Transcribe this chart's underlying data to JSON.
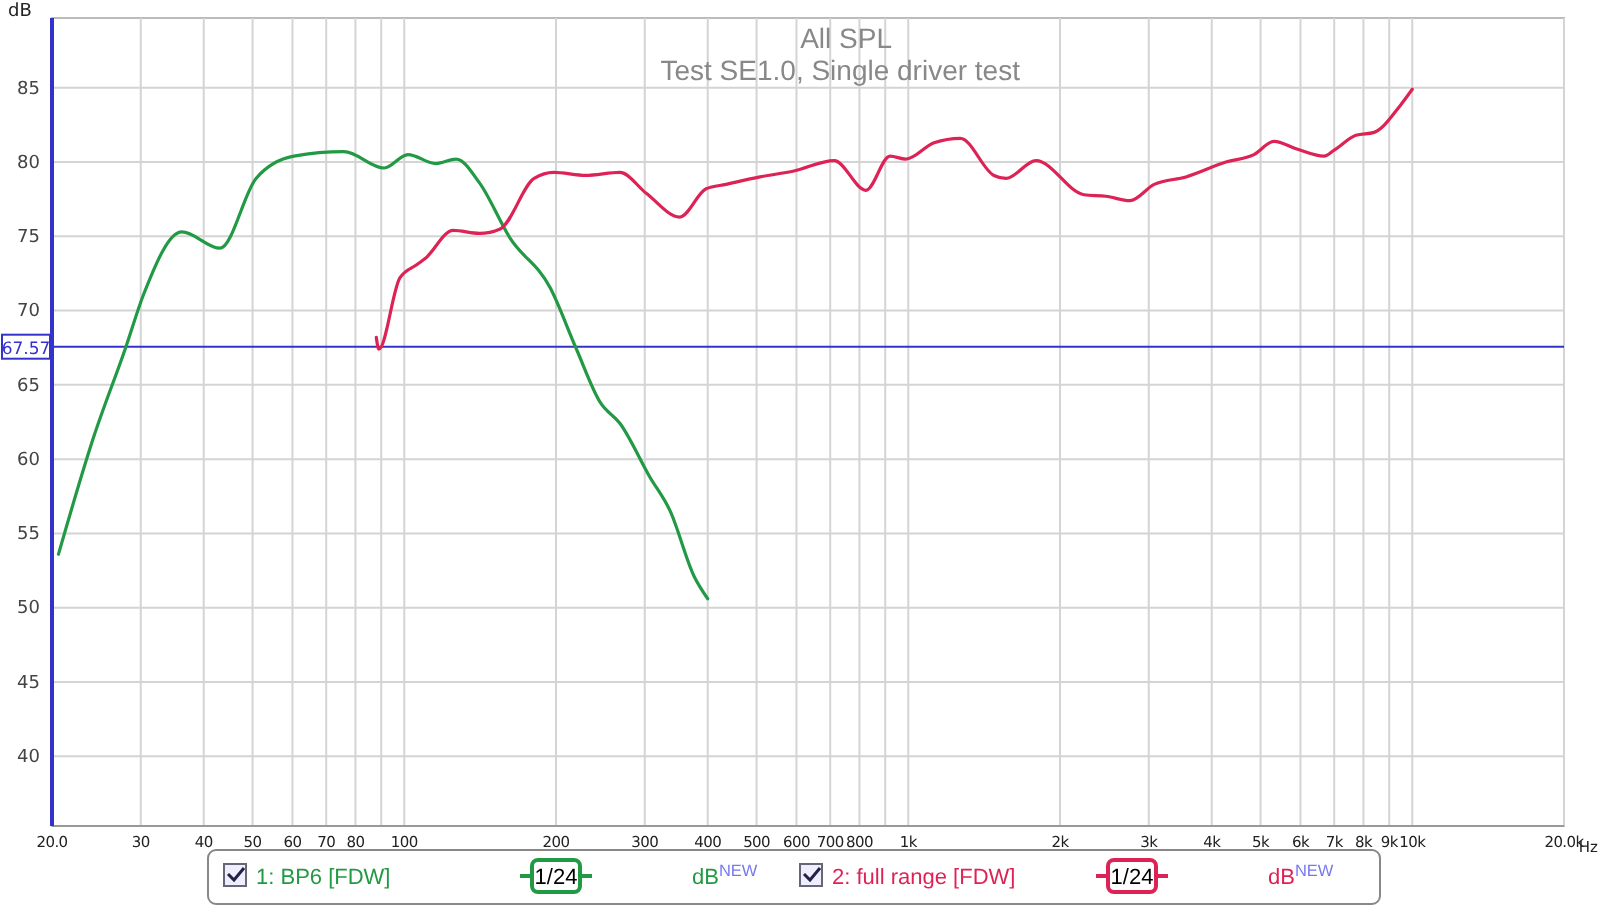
{
  "chart_data": {
    "type": "line",
    "title": "All SPL",
    "subtitle": "Test SE1.0, Single driver test",
    "xlabel": "Hz",
    "ylabel": "dB",
    "log": "x",
    "grid": true,
    "legend": "bottom",
    "xlim": [
      20,
      20000
    ],
    "xticks": [
      {
        "value": 20,
        "label": "20.0"
      },
      30,
      40,
      50,
      60,
      70,
      80,
      100,
      200,
      300,
      400,
      500,
      600,
      700,
      800,
      {
        "value": 1000,
        "label": "1k"
      },
      {
        "value": 2000,
        "label": "2k"
      },
      {
        "value": 3000,
        "label": "3k"
      },
      {
        "value": 4000,
        "label": "4k"
      },
      {
        "value": 5000,
        "label": "5k"
      },
      {
        "value": 6000,
        "label": "6k"
      },
      {
        "value": 7000,
        "label": "7k"
      },
      {
        "value": 8000,
        "label": "8k"
      },
      {
        "value": 9000,
        "label": "9k"
      },
      {
        "value": 10000,
        "label": "10k"
      },
      {
        "value": 20000,
        "label": "20.0k"
      },
      {
        "value": 90,
        "label": null
      },
      {
        "value": 900,
        "label": null
      }
    ],
    "ylim": [
      35.3,
      89.7
    ],
    "yticks": [
      40,
      45,
      50,
      55,
      60,
      65,
      70,
      75,
      80,
      85
    ],
    "ref_lines": [
      {
        "axis": "y",
        "value": 67.57,
        "label": "67.57",
        "color": "#3333cc"
      }
    ],
    "annotations": [
      "1/24",
      "dB$^{NEW}$",
      "1/24",
      "dB$^{NEW}$"
    ],
    "series": [
      {
        "name": "1: BP6 [FDW]",
        "color": "#229944",
        "x": [
          20.6,
          24.2,
          28.0,
          30.4,
          36.2,
          43.1,
          50.8,
          60.4,
          75.9,
          91.2,
          101.7,
          115.6,
          126.7,
          141,
          162,
          195,
          219,
          245,
          268,
          307,
          337,
          376,
          400
        ],
        "values": [
          53.6,
          61.5,
          67.5,
          71.1,
          75.3,
          74.2,
          78.9,
          80.4,
          80.7,
          79.6,
          80.5,
          79.9,
          80.2,
          78.6,
          74.9,
          71.5,
          67.5,
          63.8,
          62.4,
          58.8,
          56.5,
          52.1,
          50.6
        ]
      },
      {
        "name": "2: full range [FDW]",
        "color": "#dd2255",
        "x": [
          88,
          89,
          98,
          106,
          110,
          125,
          141,
          155,
          181,
          198,
          229,
          268,
          302,
          352,
          397,
          435,
          508,
          593,
          713,
          824,
          920,
          989,
          1125,
          1268,
          1479,
          1563,
          1792,
          2232,
          2468,
          2754,
          3076,
          3556,
          4268,
          4850,
          5320,
          5880,
          6684,
          7000,
          7730,
          8400,
          9460,
          10000
        ],
        "values": [
          68.2,
          67.4,
          72.2,
          73.1,
          73.5,
          75.4,
          75.2,
          75.5,
          78.9,
          79.3,
          79.1,
          79.3,
          77.9,
          76.3,
          78.2,
          78.5,
          79.0,
          79.4,
          80.1,
          78.1,
          80.4,
          80.2,
          81.3,
          81.6,
          79.1,
          78.9,
          80.1,
          77.8,
          77.7,
          77.4,
          78.5,
          79.0,
          80.0,
          80.5,
          81.4,
          80.9,
          80.4,
          80.8,
          81.8,
          82.0,
          83.8,
          84.9
        ]
      }
    ]
  }
}
